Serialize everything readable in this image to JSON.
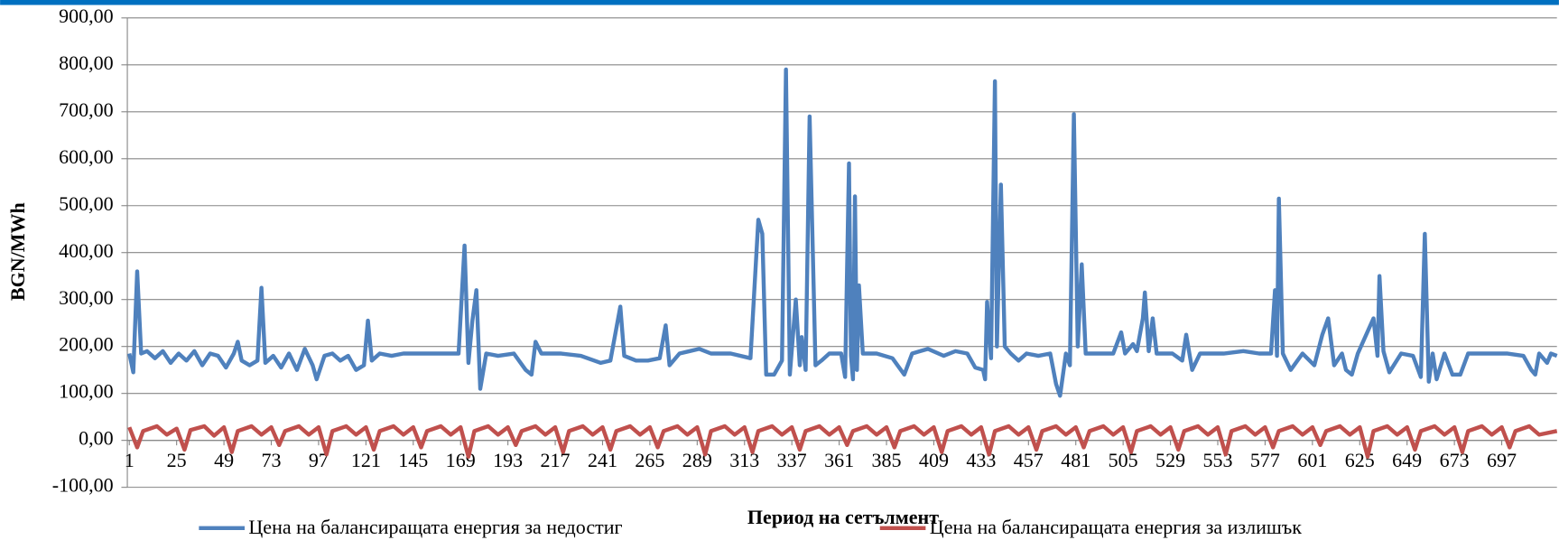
{
  "chart_data": {
    "type": "line",
    "xlabel": "Период на сетълмент",
    "ylabel": "BGN/MWh",
    "xlim": [
      0,
      725
    ],
    "xticks": [
      1,
      25,
      49,
      73,
      97,
      121,
      145,
      169,
      193,
      217,
      241,
      265,
      289,
      313,
      337,
      361,
      385,
      409,
      433,
      457,
      481,
      505,
      529,
      553,
      577,
      601,
      625,
      649,
      673,
      697
    ],
    "ylim": [
      -100,
      900
    ],
    "yticks": [
      {
        "value": -100,
        "label": "-100,00"
      },
      {
        "value": 0,
        "label": "0,00"
      },
      {
        "value": 100,
        "label": "100,00"
      },
      {
        "value": 200,
        "label": "200,00"
      },
      {
        "value": 300,
        "label": "300,00"
      },
      {
        "value": 400,
        "label": "400,00"
      },
      {
        "value": 500,
        "label": "500,00"
      },
      {
        "value": 600,
        "label": "600,00"
      },
      {
        "value": 700,
        "label": "700,00"
      },
      {
        "value": 800,
        "label": "800,00"
      },
      {
        "value": 900,
        "label": "900,00"
      }
    ],
    "grid": true,
    "legend": "bottom",
    "series": [
      {
        "name": "Цена на балансиращата  енергия за недостиг",
        "color": "#4f81bd",
        "x": [
          1,
          3,
          5,
          7,
          10,
          14,
          18,
          22,
          26,
          30,
          34,
          38,
          42,
          46,
          50,
          54,
          56,
          58,
          62,
          66,
          68,
          70,
          74,
          78,
          82,
          86,
          90,
          94,
          96,
          100,
          104,
          108,
          112,
          116,
          120,
          122,
          124,
          128,
          134,
          140,
          150,
          160,
          168,
          171,
          173,
          175,
          177,
          179,
          182,
          188,
          196,
          202,
          205,
          207,
          210,
          220,
          230,
          240,
          245,
          250,
          252,
          258,
          264,
          270,
          273,
          275,
          280,
          290,
          296,
          306,
          316,
          320,
          322,
          324,
          328,
          332,
          334,
          336,
          339,
          341,
          342,
          344,
          346,
          349,
          352,
          356,
          362,
          364,
          366,
          367,
          368,
          369,
          370,
          371,
          373,
          380,
          388,
          394,
          398,
          406,
          414,
          420,
          426,
          430,
          434,
          435,
          436,
          438,
          440,
          441,
          443,
          445,
          448,
          452,
          456,
          462,
          468,
          471,
          473,
          476,
          478,
          480,
          482,
          484,
          486,
          492,
          500,
          504,
          506,
          510,
          512,
          515,
          516,
          518,
          520,
          522,
          530,
          535,
          537,
          540,
          544,
          556,
          566,
          574,
          580,
          582,
          583,
          584,
          586,
          590,
          596,
          602,
          606,
          609,
          612,
          616,
          618,
          621,
          624,
          632,
          634,
          635,
          637,
          640,
          646,
          652,
          656,
          658,
          660,
          662,
          664,
          668,
          672,
          676,
          680,
          690,
          700,
          708,
          712,
          714,
          716,
          720,
          722,
          725
        ],
        "values": [
          185,
          145,
          360,
          185,
          190,
          175,
          190,
          165,
          185,
          170,
          190,
          160,
          185,
          180,
          155,
          185,
          210,
          170,
          160,
          170,
          325,
          165,
          180,
          155,
          185,
          150,
          195,
          160,
          130,
          180,
          185,
          170,
          180,
          150,
          160,
          255,
          170,
          185,
          180,
          185,
          185,
          185,
          185,
          415,
          165,
          255,
          320,
          110,
          185,
          180,
          185,
          150,
          140,
          210,
          185,
          185,
          180,
          165,
          170,
          285,
          180,
          170,
          170,
          175,
          245,
          160,
          185,
          195,
          185,
          185,
          175,
          470,
          440,
          140,
          140,
          170,
          790,
          140,
          300,
          160,
          220,
          150,
          690,
          160,
          170,
          185,
          185,
          135,
          590,
          180,
          130,
          520,
          150,
          330,
          185,
          185,
          175,
          140,
          185,
          195,
          180,
          190,
          185,
          155,
          150,
          130,
          295,
          175,
          765,
          200,
          545,
          200,
          185,
          170,
          185,
          180,
          185,
          120,
          95,
          185,
          160,
          695,
          200,
          375,
          185,
          185,
          185,
          230,
          185,
          205,
          190,
          260,
          315,
          190,
          260,
          185,
          185,
          170,
          225,
          150,
          185,
          185,
          190,
          185,
          185,
          320,
          180,
          515,
          185,
          150,
          185,
          160,
          225,
          260,
          160,
          185,
          150,
          140,
          185,
          260,
          180,
          350,
          190,
          145,
          185,
          180,
          135,
          440,
          125,
          185,
          130,
          185,
          140,
          140,
          185,
          185,
          185,
          180,
          150,
          140,
          185,
          165,
          185,
          180
        ]
      },
      {
        "name": "Цена на балансиращата  енергия за излишък",
        "color": "#c0504d",
        "x": [
          1,
          5,
          8,
          15,
          20,
          25,
          29,
          32,
          39,
          44,
          49,
          53,
          56,
          63,
          68,
          73,
          77,
          80,
          87,
          92,
          97,
          101,
          104,
          111,
          116,
          121,
          125,
          128,
          135,
          140,
          145,
          149,
          152,
          159,
          164,
          169,
          173,
          176,
          183,
          188,
          193,
          197,
          200,
          207,
          212,
          217,
          221,
          224,
          231,
          236,
          241,
          245,
          248,
          255,
          260,
          265,
          269,
          272,
          279,
          284,
          289,
          293,
          296,
          303,
          308,
          313,
          317,
          320,
          327,
          332,
          337,
          341,
          344,
          351,
          356,
          361,
          365,
          368,
          375,
          380,
          385,
          389,
          392,
          399,
          404,
          409,
          413,
          416,
          423,
          428,
          433,
          437,
          440,
          447,
          452,
          457,
          461,
          464,
          471,
          476,
          481,
          485,
          488,
          495,
          500,
          505,
          509,
          512,
          519,
          524,
          529,
          533,
          536,
          543,
          548,
          553,
          557,
          560,
          567,
          572,
          577,
          581,
          584,
          591,
          596,
          601,
          605,
          608,
          615,
          620,
          625,
          629,
          632,
          639,
          644,
          649,
          653,
          656,
          663,
          668,
          673,
          677,
          680,
          687,
          692,
          697,
          701,
          704,
          711,
          716,
          725
        ],
        "values": [
          28,
          -15,
          20,
          30,
          12,
          25,
          -20,
          22,
          30,
          10,
          28,
          -25,
          20,
          30,
          12,
          28,
          -10,
          20,
          30,
          12,
          28,
          -30,
          20,
          30,
          12,
          28,
          -20,
          20,
          30,
          12,
          28,
          -15,
          20,
          30,
          12,
          28,
          -35,
          20,
          30,
          12,
          28,
          -10,
          20,
          30,
          12,
          28,
          -25,
          20,
          30,
          12,
          28,
          -20,
          20,
          30,
          12,
          28,
          -15,
          20,
          30,
          12,
          28,
          -30,
          20,
          30,
          12,
          28,
          -25,
          20,
          30,
          12,
          28,
          -20,
          20,
          30,
          12,
          28,
          -10,
          20,
          30,
          12,
          28,
          -15,
          20,
          30,
          12,
          28,
          -25,
          20,
          30,
          12,
          28,
          -30,
          20,
          30,
          12,
          28,
          -20,
          20,
          30,
          12,
          28,
          -15,
          20,
          30,
          12,
          28,
          -25,
          20,
          30,
          12,
          28,
          -20,
          20,
          30,
          12,
          28,
          -30,
          20,
          30,
          12,
          28,
          -15,
          20,
          30,
          12,
          28,
          -10,
          20,
          30,
          12,
          28,
          -35,
          20,
          30,
          12,
          28,
          -20,
          20,
          30,
          12,
          28,
          -25,
          20,
          30,
          12,
          28,
          -15,
          20,
          30,
          12,
          20
        ]
      }
    ]
  }
}
